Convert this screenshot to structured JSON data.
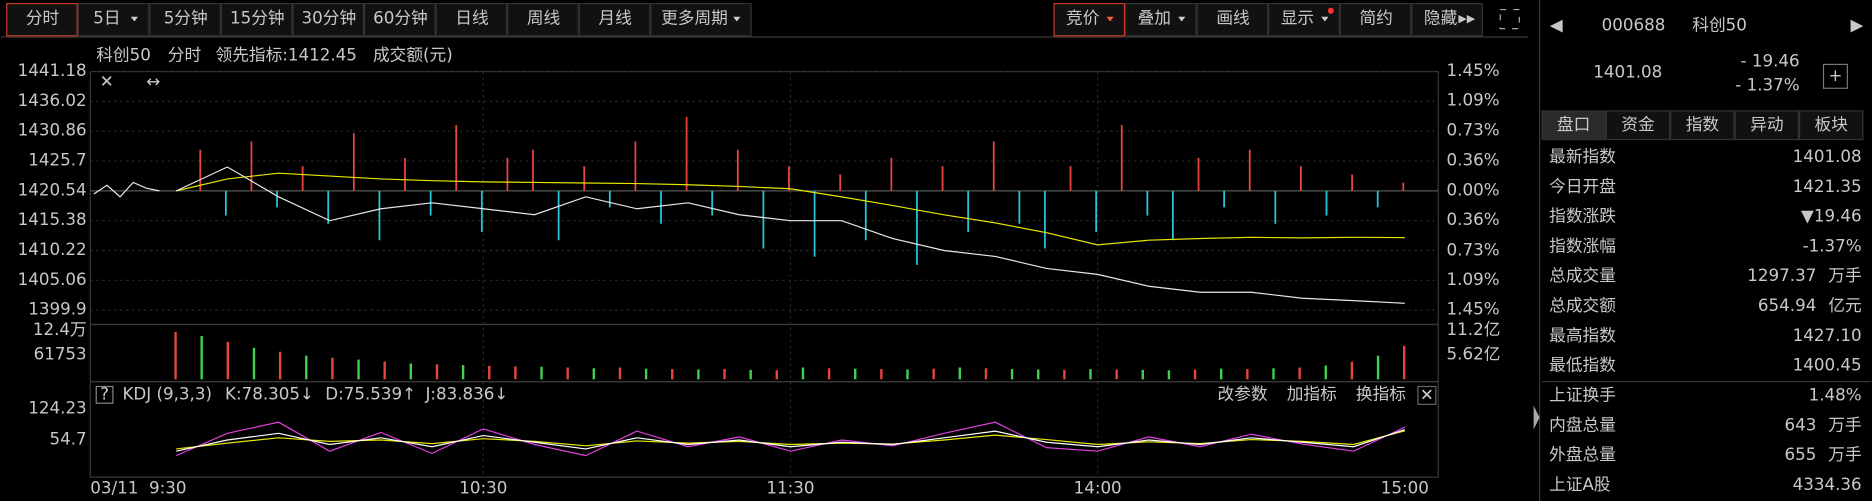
{
  "toolbar": {
    "left": [
      "分时",
      "5日",
      "5分钟",
      "15分钟",
      "30分钟",
      "60分钟",
      "日线",
      "周线",
      "月线",
      "更多周期"
    ],
    "right": [
      "竞价",
      "叠加",
      "画线",
      "显示",
      "简约",
      "隐藏"
    ]
  },
  "main": {
    "name": "科创50",
    "mode": "分时",
    "indicator": "领先指标:1412.45",
    "amount_label": "成交额(元)",
    "yticks": [
      1441.18,
      1436.02,
      1430.86,
      1425.7,
      1420.54,
      1415.38,
      1410.22,
      1405.06,
      1399.9
    ],
    "ylim": [
      1399.9,
      1441.18
    ],
    "pticks": [
      {
        "value": 1.45,
        "label": "1.45%"
      },
      {
        "value": 1.09,
        "label": "1.09%"
      },
      {
        "value": 0.73,
        "label": "0.73%"
      },
      {
        "value": 0.36,
        "label": "0.36%"
      },
      {
        "value": 0,
        "label": "0.00%"
      },
      {
        "value": -0.36,
        "label": "0.36%"
      },
      {
        "value": -0.73,
        "label": "0.73%"
      },
      {
        "value": -1.09,
        "label": "1.09%"
      },
      {
        "value": -1.45,
        "label": "1.45%"
      }
    ],
    "minutes": [
      0,
      10,
      20,
      30,
      40,
      50,
      60,
      70,
      80,
      90,
      100,
      110,
      120,
      130,
      140,
      150,
      160,
      170,
      180,
      190,
      200,
      210,
      220,
      230,
      240
    ],
    "price": [
      1420.54,
      1424.67,
      1419.51,
      1415.38,
      1417.44,
      1418.47,
      1417.44,
      1416.41,
      1419.51,
      1417.44,
      1418.47,
      1416.41,
      1415.38,
      1415.38,
      1412.28,
      1410.22,
      1409.19,
      1407.12,
      1406.09,
      1404.03,
      1403.0,
      1403.0,
      1401.96,
      1401.55,
      1401.08
    ],
    "average": [
      1420.54,
      1422.6,
      1423.6,
      1423.1,
      1422.6,
      1422.3,
      1422.1,
      1422.0,
      1421.9,
      1421.8,
      1421.6,
      1421.3,
      1420.9,
      1419.5,
      1418.0,
      1416.4,
      1415.0,
      1413.3,
      1411.2,
      1412.0,
      1412.3,
      1412.5,
      1412.4,
      1412.5,
      1412.45
    ],
    "prev_day": [
      1420.0,
      1421.5,
      1419.5,
      1422.0,
      1421.0,
      1420.54
    ],
    "indicator_bars": [
      0.5,
      -0.3,
      0.6,
      -0.2,
      0.3,
      -0.4,
      0.7,
      -0.6,
      0.4,
      -0.3,
      0.8,
      -0.5,
      0.4,
      0.5,
      -0.6,
      0.3,
      -0.2,
      0.6,
      -0.4,
      0.9,
      -0.3,
      0.5,
      -0.7,
      0.3,
      -0.8,
      0.2,
      -0.6,
      0.4,
      -0.9,
      0.3,
      -0.5,
      0.6,
      -0.4,
      -0.7,
      0.3,
      -0.5,
      0.8,
      -0.3,
      -0.6,
      0.4,
      -0.2,
      0.5,
      -0.4,
      0.3,
      -0.3,
      0.2,
      -0.2,
      0.1
    ],
    "colors": {
      "up": "#e8453c",
      "down": "#27c5d8",
      "price": "#e8e8e8",
      "average": "#e6e600"
    }
  },
  "volume": {
    "yticks": [
      {
        "value": 124000,
        "label": "12.4万"
      },
      61753
    ],
    "ylim": [
      0,
      124000
    ],
    "amount_ticks": [
      {
        "value": 1120000000,
        "label": "11.2亿"
      },
      {
        "value": 562000000,
        "label": "5.62亿"
      }
    ],
    "amount_lim": [
      0,
      1120000000
    ],
    "values": [
      120000,
      110000,
      95000,
      80000,
      70000,
      60000,
      55000,
      50000,
      45000,
      40000,
      38000,
      36000,
      34000,
      33000,
      32000,
      30000,
      28000,
      30000,
      27000,
      26000,
      25000,
      26000,
      24000,
      23000,
      30000,
      28000,
      27000,
      26000,
      25000,
      27000,
      30000,
      28000,
      26000,
      25000,
      24000,
      26000,
      25000,
      24000,
      23000,
      25000,
      27000,
      26000,
      28000,
      30000,
      35000,
      45000,
      60000,
      85000
    ]
  },
  "kdj": {
    "title": "KDJ (9,3,3)",
    "k_label": "K:78.305↓",
    "d_label": "D:75.539↑",
    "j_label": "J:83.836↓",
    "actions": [
      "改参数",
      "加指标",
      "换指标"
    ],
    "yticks": [
      124.23,
      54.7
    ],
    "ylim": [
      -41.6,
      159
    ],
    "k": [
      30,
      55,
      70,
      45,
      60,
      40,
      65,
      50,
      35,
      60,
      45,
      55,
      40,
      50,
      45,
      60,
      75,
      50,
      40,
      55,
      45,
      60,
      50,
      40,
      78.305
    ],
    "d": [
      35,
      48,
      60,
      52,
      55,
      47,
      58,
      52,
      42,
      53,
      48,
      52,
      45,
      48,
      46,
      55,
      66,
      56,
      45,
      51,
      47,
      56,
      52,
      45,
      75.539
    ],
    "j": [
      20,
      70,
      95,
      30,
      72,
      25,
      80,
      45,
      20,
      75,
      40,
      62,
      30,
      55,
      42,
      70,
      95,
      38,
      30,
      62,
      40,
      68,
      46,
      30,
      83.836
    ]
  },
  "xlabels": [
    "03/11",
    "9:30",
    "10:30",
    "11:30",
    "14:00",
    "15:00"
  ],
  "side": {
    "code": "000688",
    "name": "科创50",
    "price": "1401.08",
    "change": "- 19.46",
    "pct": "- 1.37%",
    "tabs": [
      "盘口",
      "资金",
      "指数",
      "异动",
      "板块"
    ],
    "rows": [
      {
        "label": "最新指数",
        "value": "1401.08",
        "color": "#3fd24f"
      },
      {
        "label": "今日开盘",
        "value": "1421.35",
        "color": "#ff4a4a"
      },
      {
        "label": "指数涨跌",
        "value": "▼19.46",
        "color": "#3fd24f"
      },
      {
        "label": "指数涨幅",
        "value": "-1.37%",
        "color": "#3fd24f"
      },
      {
        "label": "总成交量",
        "value": "1297.37",
        "unit": "万手",
        "color": "#ffffff"
      },
      {
        "label": "总成交额",
        "value": "654.94",
        "unit": "亿元",
        "color": "#27c5f0"
      },
      {
        "label": "最高指数",
        "value": "1427.10",
        "color": "#ff4a4a"
      },
      {
        "label": "最低指数",
        "value": "1400.45",
        "color": "#3fd24f"
      },
      {
        "label": "上证换手",
        "value": "1.48%",
        "color": "#ffffff"
      },
      {
        "label": "内盘总量",
        "value": "643",
        "unit": "万手",
        "color": "#3fd24f"
      },
      {
        "label": "外盘总量",
        "value": "655",
        "unit": "万手",
        "color": "#ff4a4a"
      },
      {
        "label": "上证A股",
        "value": "4334.36",
        "color": "#ff4a4a"
      }
    ]
  }
}
